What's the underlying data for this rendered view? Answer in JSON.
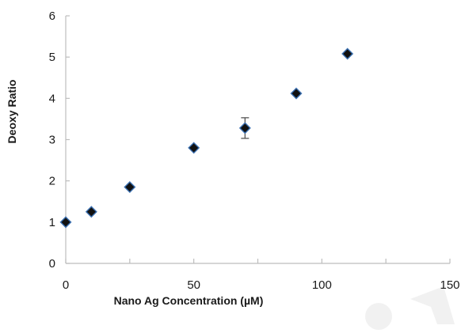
{
  "chart_data": {
    "type": "scatter",
    "title": "",
    "xlabel": "Nano Ag Concentration (µM)",
    "ylabel": "Deoxy Ratio",
    "xlim": [
      0,
      150
    ],
    "ylim": [
      0,
      6
    ],
    "xticks": [
      0,
      50,
      100,
      150
    ],
    "yticks": [
      0,
      1,
      2,
      3,
      4,
      5,
      6
    ],
    "x_minor_step": 25,
    "grid": false,
    "legend": "none",
    "marker": "diamond",
    "marker_color": "#111111",
    "marker_edge_color": "#3a6fb0",
    "series": [
      {
        "x": [
          0,
          10,
          25,
          50,
          70,
          90,
          110
        ],
        "y": [
          1.0,
          1.25,
          1.85,
          2.8,
          3.28,
          4.12,
          5.08
        ],
        "error": [
          0,
          0,
          0,
          0,
          0.25,
          0,
          0
        ]
      }
    ]
  },
  "axis_color": "#bdbdbd",
  "watermark": {
    "kind": "logo",
    "color": "#f1f1f1"
  }
}
